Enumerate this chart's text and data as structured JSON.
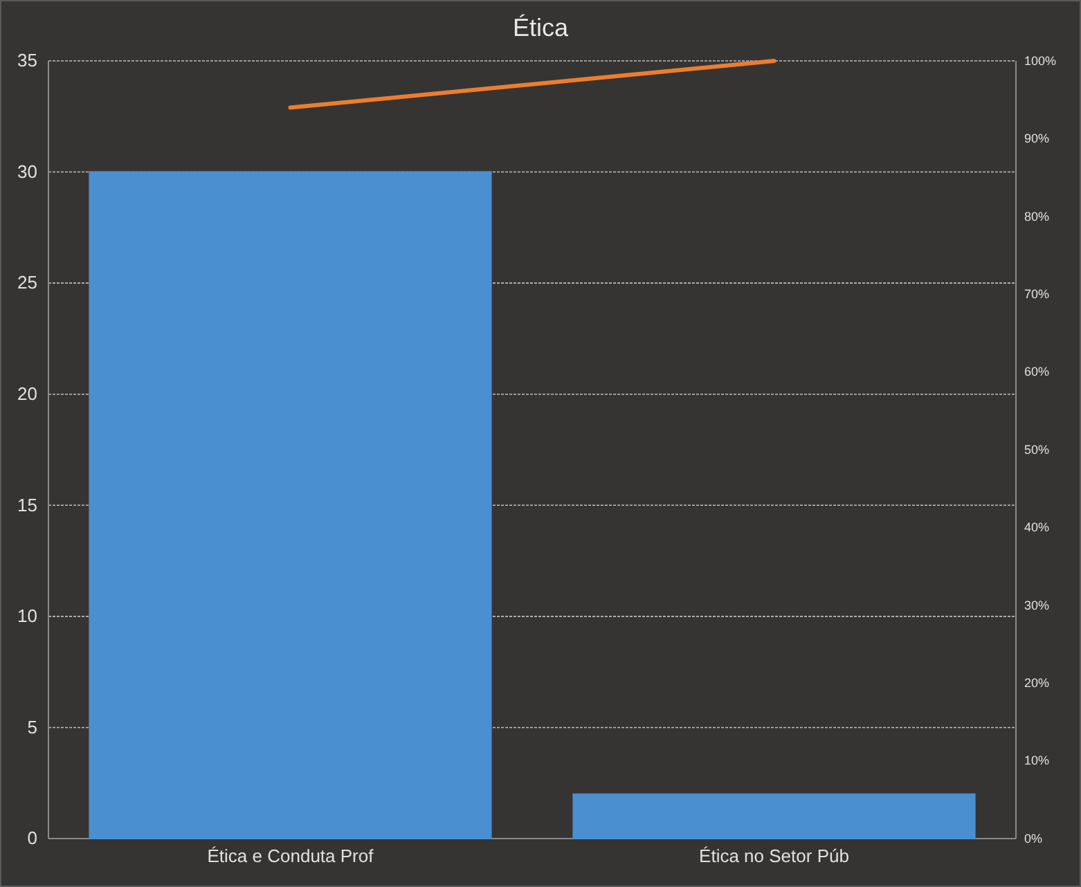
{
  "chart_data": {
    "type": "bar",
    "title": "Ética",
    "categories": [
      "Ética e Conduta Prof",
      "Ética no Setor Púb"
    ],
    "series": [
      {
        "color": "#4a8fd0",
        "values": [
          30,
          2
        ]
      },
      {
        "type": "line",
        "axis": "y2",
        "color": "#ed7d31",
        "values": [
          94,
          100
        ]
      }
    ],
    "ylim": [
      0,
      35
    ],
    "yticks": [
      0,
      5,
      10,
      15,
      20,
      25,
      30,
      35
    ],
    "y2lim": [
      0,
      100
    ],
    "y2ticks": [
      {
        "value": 0,
        "label": "0%"
      },
      {
        "value": 10,
        "label": "10%"
      },
      {
        "value": 20,
        "label": "20%"
      },
      {
        "value": 30,
        "label": "30%"
      },
      {
        "value": 40,
        "label": "40%"
      },
      {
        "value": 50,
        "label": "50%"
      },
      {
        "value": 60,
        "label": "60%"
      },
      {
        "value": 70,
        "label": "70%"
      },
      {
        "value": 80,
        "label": "80%"
      },
      {
        "value": 90,
        "label": "90%"
      },
      {
        "value": 100,
        "label": "100%"
      }
    ],
    "grid": "y"
  }
}
